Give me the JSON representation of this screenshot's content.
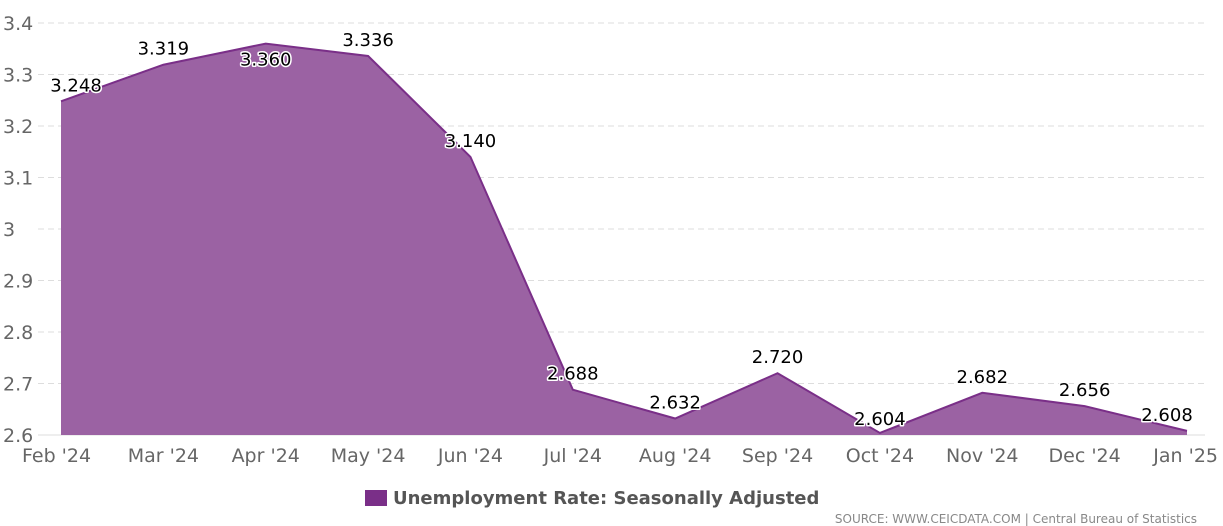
{
  "chart_data": {
    "type": "area",
    "categories": [
      "Feb '24",
      "Mar '24",
      "Apr '24",
      "May '24",
      "Jun '24",
      "Jul '24",
      "Aug '24",
      "Sep '24",
      "Oct '24",
      "Nov '24",
      "Dec '24",
      "Jan '25"
    ],
    "series": [
      {
        "name": "Unemployment Rate: Seasonally Adjusted",
        "values": [
          3.248,
          3.319,
          3.36,
          3.336,
          3.14,
          2.688,
          2.632,
          2.72,
          2.604,
          2.682,
          2.656,
          2.608
        ],
        "value_labels": [
          "3.248",
          "3.319",
          "3.360",
          "3.336",
          "3.140",
          "2.688",
          "2.632",
          "2.720",
          "2.604",
          "2.682",
          "2.656",
          "2.608"
        ],
        "fill_color": "#9b62a3",
        "line_color": "#7a2f88"
      }
    ],
    "ylim": [
      2.6,
      3.4
    ],
    "yticks": [
      2.6,
      2.7,
      2.8,
      2.9,
      3.0,
      3.1,
      3.2,
      3.3,
      3.4
    ],
    "ytick_labels": [
      "2.6",
      "2.7",
      "2.8",
      "2.9",
      "3",
      "3.1",
      "3.2",
      "3.3",
      "3.4"
    ],
    "grid": true,
    "legend_position": "bottom-center",
    "title": "",
    "xlabel": "",
    "ylabel": ""
  },
  "legend": {
    "label": "Unemployment Rate: Seasonally Adjusted",
    "color": "#7a2f88"
  },
  "source": "SOURCE: WWW.CEICDATA.COM | Central Bureau of Statistics"
}
